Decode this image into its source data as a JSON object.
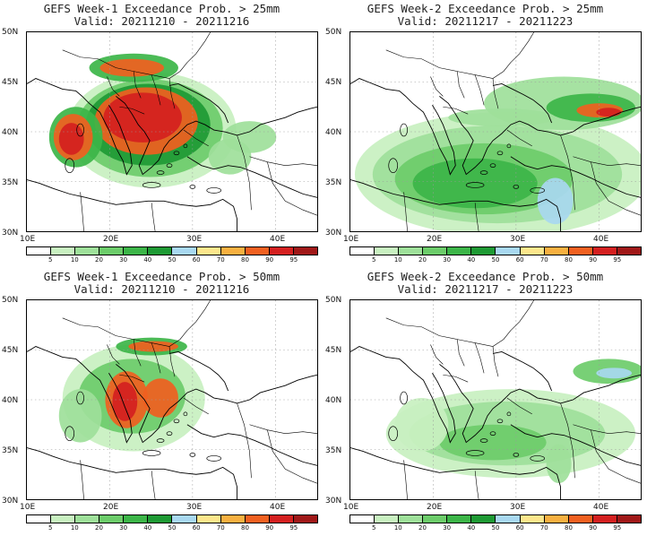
{
  "panels": [
    {
      "line1": "GEFS Week-1 Exceedance Prob. > 25mm",
      "line2": "Valid: 20211210 - 20211216"
    },
    {
      "line1": "GEFS Week-2 Exceedance Prob. > 25mm",
      "line2": "Valid: 20211217 - 20211223"
    },
    {
      "line1": "GEFS Week-1 Exceedance Prob. > 50mm",
      "line2": "Valid: 20211210 - 20211216"
    },
    {
      "line1": "GEFS Week-2 Exceedance Prob. > 50mm",
      "line2": "Valid: 20211217 - 20211223"
    }
  ],
  "lat_labels": [
    "50N",
    "45N",
    "40N",
    "35N",
    "30N"
  ],
  "lon_labels": [
    "10E",
    "20E",
    "30E",
    "40E"
  ],
  "colorbar": {
    "levels": [
      "5",
      "10",
      "20",
      "30",
      "40",
      "50",
      "60",
      "70",
      "80",
      "90",
      "95"
    ],
    "colors": [
      "#ffffff",
      "#c8f0c0",
      "#9ee09a",
      "#6ccc6a",
      "#3cb548",
      "#1e9a34",
      "#a8d8f0",
      "#fce68c",
      "#f7b040",
      "#f06020",
      "#d42020",
      "#a01818"
    ]
  }
}
